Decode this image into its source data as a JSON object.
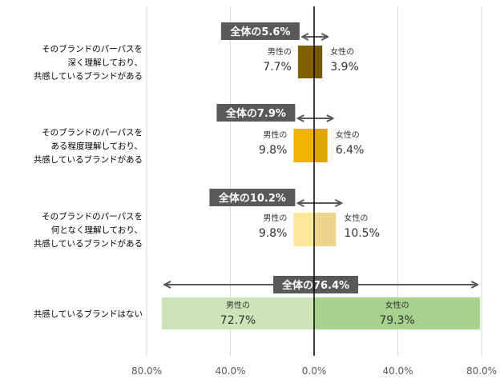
{
  "chart_data": {
    "type": "bar",
    "orientation": "horizontal-diverging",
    "xlim": [
      -80,
      80
    ],
    "x_ticks": [
      -80,
      -40,
      0,
      40,
      80
    ],
    "x_tick_labels": [
      "80.0%",
      "40.0%",
      "0.0%",
      "40.0%",
      "80.0%"
    ],
    "grid": true,
    "male_label": "男性の",
    "female_label": "女性の",
    "categories": [
      {
        "label_lines": [
          "そのブランドのパーパスを",
          "深く理解しており、",
          "共感しているブランドがある"
        ],
        "total_label": "全体の5.6%",
        "male": 7.7,
        "male_label": "7.7%",
        "female": 3.9,
        "female_label": "3.9%",
        "color": "#7f5f00"
      },
      {
        "label_lines": [
          "そのブランドのパーパスを",
          "ある程度理解しており、",
          "共感しているブランドがある"
        ],
        "total_label": "全体の7.9%",
        "male": 9.8,
        "male_label": "9.8%",
        "female": 6.4,
        "female_label": "6.4%",
        "color": "#f0b400"
      },
      {
        "label_lines": [
          "そのブランドのパーパスを",
          "何となく理解しており、",
          "共感しているブランドがある"
        ],
        "total_label": "全体の10.2%",
        "male": 9.8,
        "male_label": "9.8%",
        "female": 10.5,
        "female_label": "10.5%",
        "color": "#ffe699"
      },
      {
        "label_lines": [
          "共感しているブランドはない"
        ],
        "total_label": "全体の76.4%",
        "male": 72.7,
        "male_label": "72.7%",
        "female": 79.3,
        "female_label": "79.3%",
        "color_male": "#cde3b8",
        "color_female": "#a9d18e"
      }
    ]
  }
}
